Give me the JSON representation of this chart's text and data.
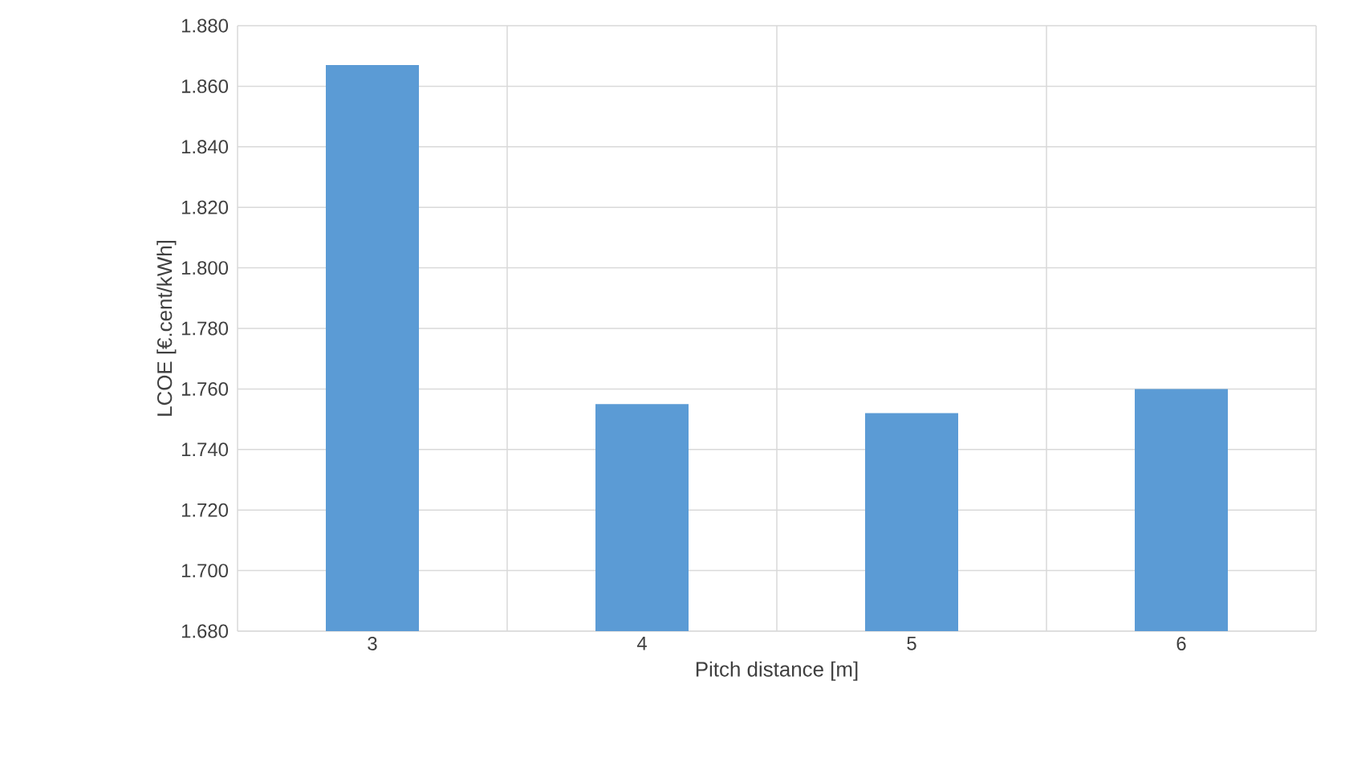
{
  "chart_data": {
    "type": "bar",
    "xlabel": "Pitch distance [m]",
    "ylabel": "LCOE [€.cent/kWh]",
    "categories": [
      "3",
      "4",
      "5",
      "6"
    ],
    "values": [
      1.867,
      1.755,
      1.752,
      1.76
    ],
    "color": "#5b9bd5",
    "ylim": [
      1.68,
      1.88
    ],
    "yticks": [
      {
        "value": 1.68,
        "label": "1.680"
      },
      {
        "value": 1.7,
        "label": "1.700"
      },
      {
        "value": 1.72,
        "label": "1.720"
      },
      {
        "value": 1.74,
        "label": "1.740"
      },
      {
        "value": 1.76,
        "label": "1.760"
      },
      {
        "value": 1.78,
        "label": "1.780"
      },
      {
        "value": 1.8,
        "label": "1.800"
      },
      {
        "value": 1.82,
        "label": "1.820"
      },
      {
        "value": 1.84,
        "label": "1.840"
      },
      {
        "value": 1.86,
        "label": "1.860"
      },
      {
        "value": 1.88,
        "label": "1.880"
      }
    ],
    "grid": true
  }
}
